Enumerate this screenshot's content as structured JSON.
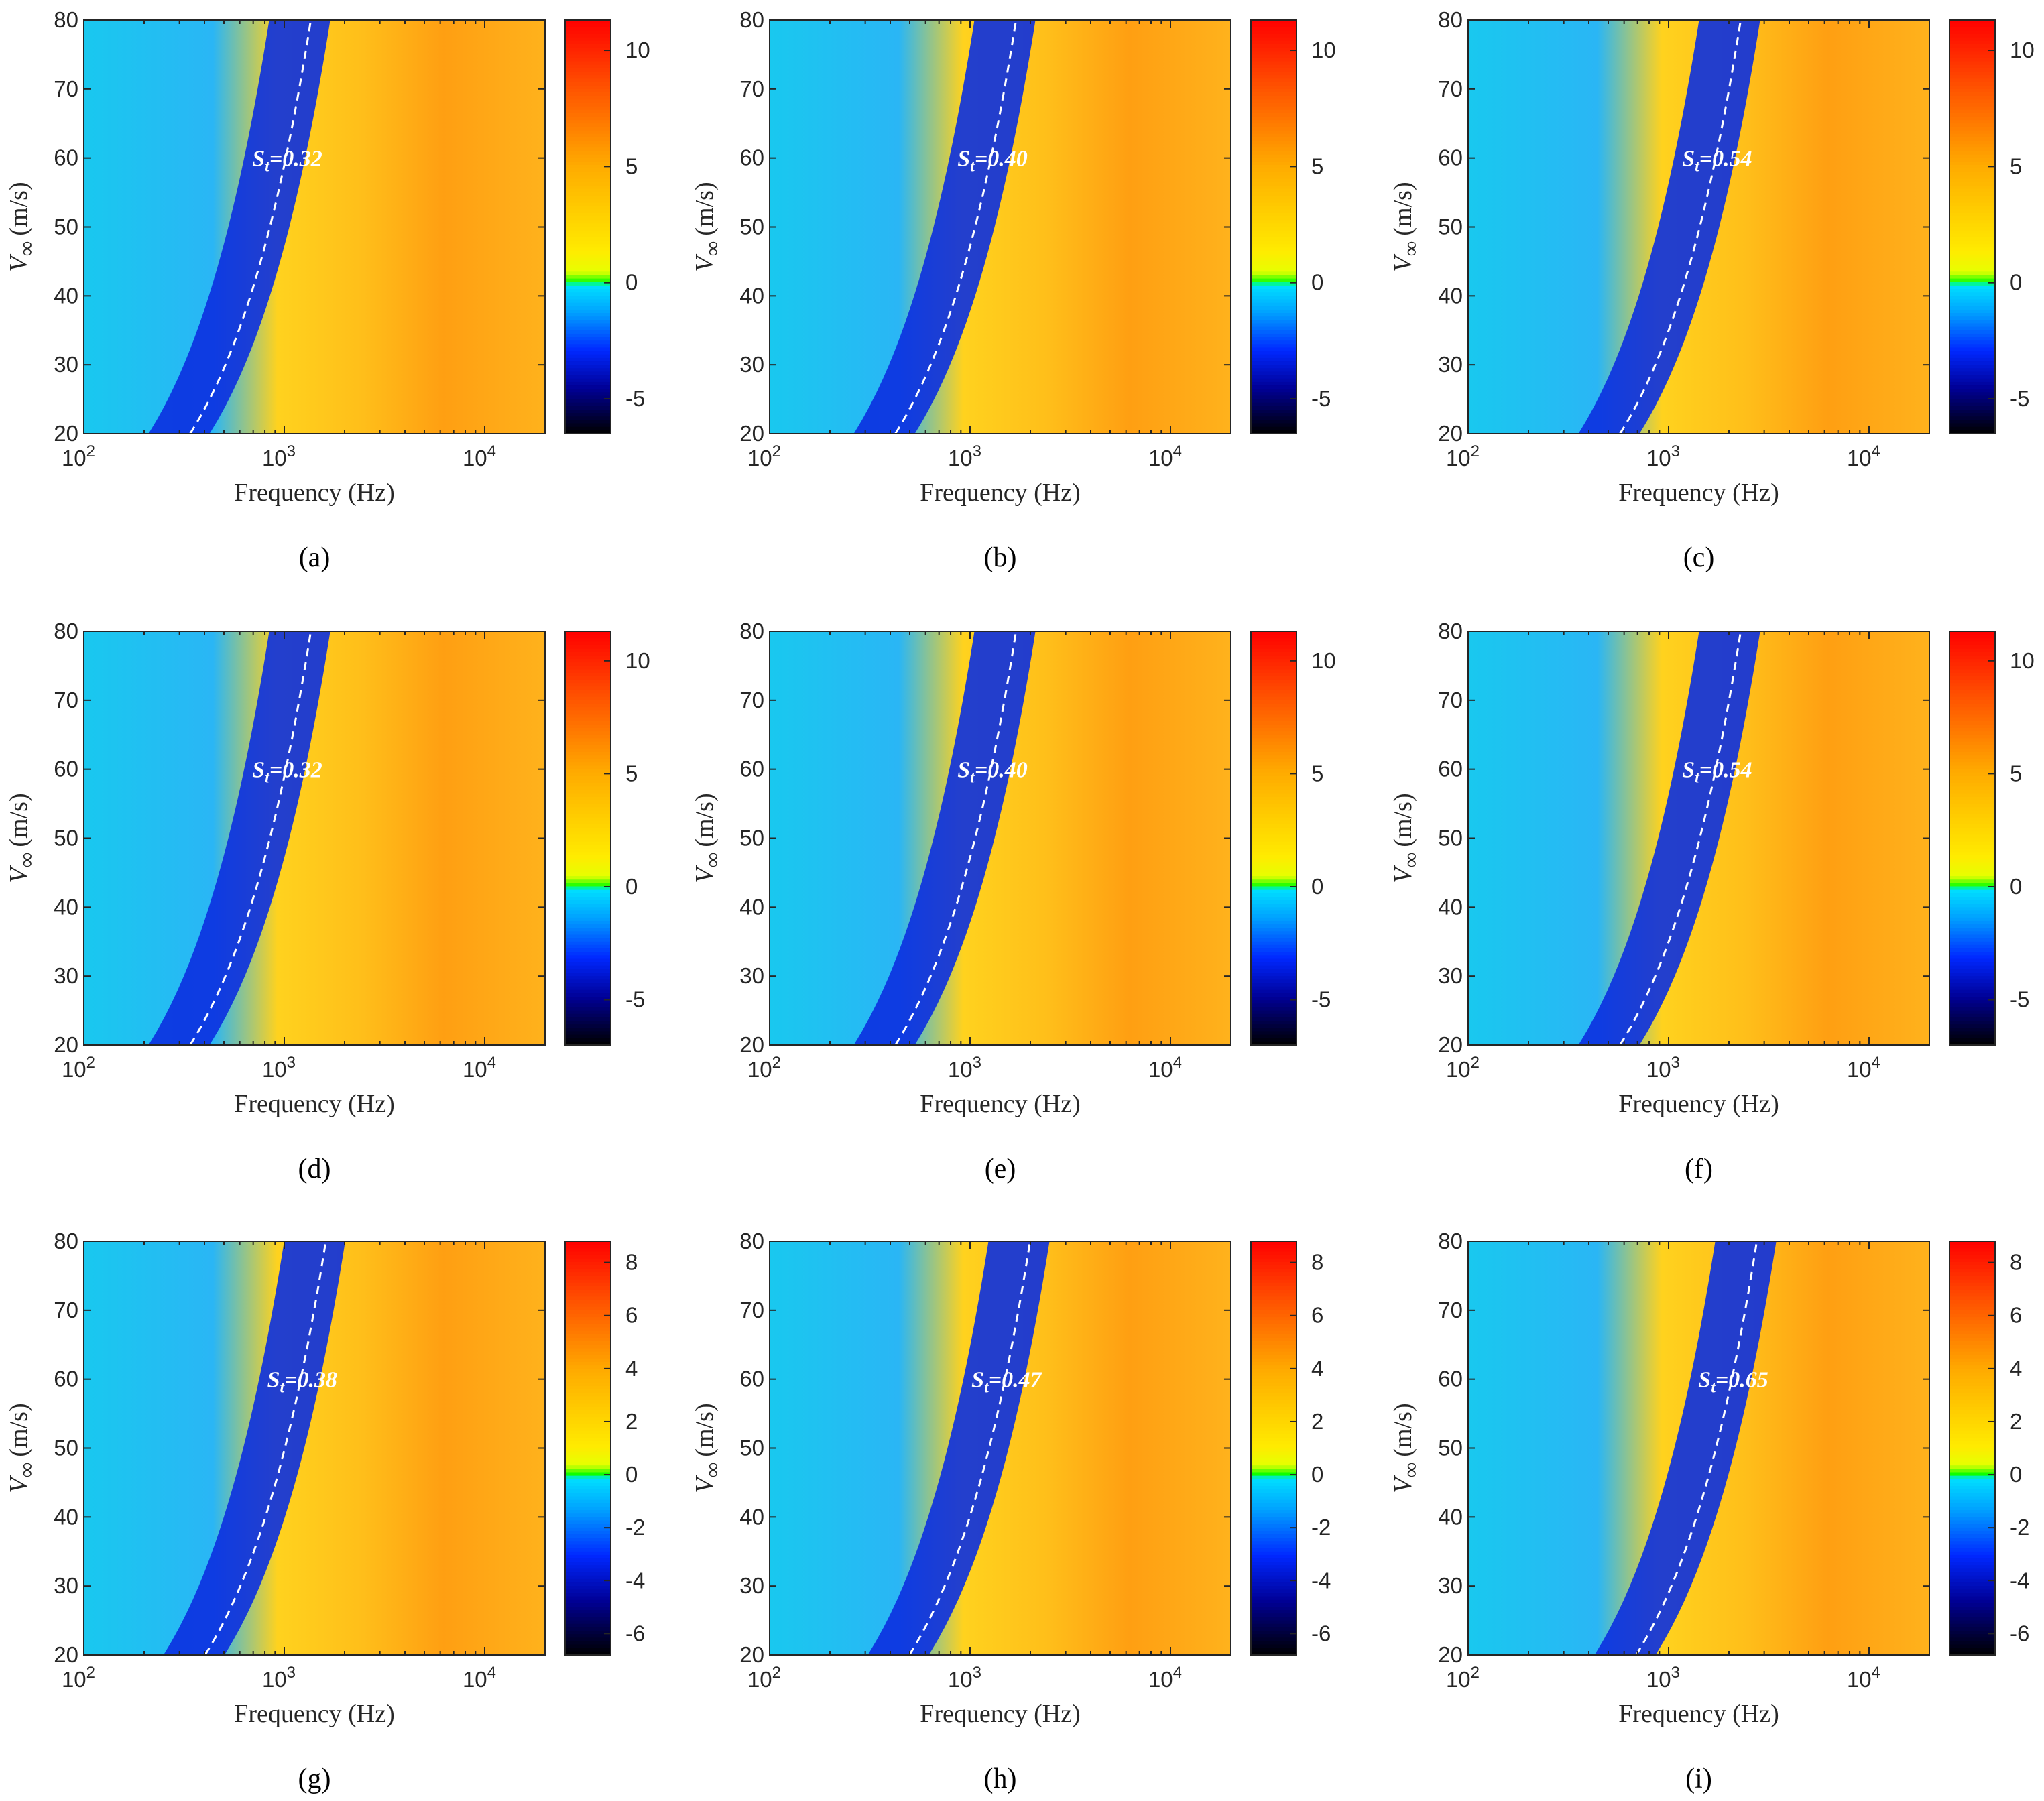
{
  "figure": {
    "panels": [
      "a",
      "b",
      "c",
      "d",
      "e",
      "f",
      "g",
      "h",
      "i"
    ]
  },
  "chart_data": [
    {
      "id": "a",
      "type": "heatmap",
      "panel_label": "(a)",
      "xlabel": "Frequency (Hz)",
      "ylabel_symbol": "V",
      "ylabel_subscript": "∞",
      "ylabel_unit": "(m/s)",
      "x_scale": "log",
      "xlim": [
        100,
        20000
      ],
      "x_ticks": [
        100,
        1000,
        10000
      ],
      "x_tick_labels": [
        "10",
        "10",
        "10"
      ],
      "x_tick_exponents": [
        "2",
        "3",
        "4"
      ],
      "ylim": [
        20,
        80
      ],
      "y_ticks": [
        20,
        30,
        40,
        50,
        60,
        70,
        80
      ],
      "y_tick_labels": [
        "20",
        "30",
        "40",
        "50",
        "60",
        "70",
        "80"
      ],
      "colorbar": {
        "min": -6.5,
        "max": 11.3,
        "ticks": [
          -5,
          0,
          5,
          10
        ],
        "tick_labels": [
          "-5",
          "0",
          "5",
          "10"
        ]
      },
      "strouhal_line": {
        "value": 0.32,
        "label_symbol": "S",
        "label_subscript": "t",
        "label_value": "=0.32"
      }
    },
    {
      "id": "b",
      "type": "heatmap",
      "panel_label": "(b)",
      "xlabel": "Frequency (Hz)",
      "ylabel_symbol": "V",
      "ylabel_subscript": "∞",
      "ylabel_unit": "(m/s)",
      "x_scale": "log",
      "xlim": [
        100,
        20000
      ],
      "x_ticks": [
        100,
        1000,
        10000
      ],
      "x_tick_labels": [
        "10",
        "10",
        "10"
      ],
      "x_tick_exponents": [
        "2",
        "3",
        "4"
      ],
      "ylim": [
        20,
        80
      ],
      "y_ticks": [
        20,
        30,
        40,
        50,
        60,
        70,
        80
      ],
      "y_tick_labels": [
        "20",
        "30",
        "40",
        "50",
        "60",
        "70",
        "80"
      ],
      "colorbar": {
        "min": -6.5,
        "max": 11.3,
        "ticks": [
          -5,
          0,
          5,
          10
        ],
        "tick_labels": [
          "-5",
          "0",
          "5",
          "10"
        ]
      },
      "strouhal_line": {
        "value": 0.4,
        "label_symbol": "S",
        "label_subscript": "t",
        "label_value": "=0.40"
      }
    },
    {
      "id": "c",
      "type": "heatmap",
      "panel_label": "(c)",
      "xlabel": "Frequency (Hz)",
      "ylabel_symbol": "V",
      "ylabel_subscript": "∞",
      "ylabel_unit": "(m/s)",
      "x_scale": "log",
      "xlim": [
        100,
        20000
      ],
      "x_ticks": [
        100,
        1000,
        10000
      ],
      "x_tick_labels": [
        "10",
        "10",
        "10"
      ],
      "x_tick_exponents": [
        "2",
        "3",
        "4"
      ],
      "ylim": [
        20,
        80
      ],
      "y_ticks": [
        20,
        30,
        40,
        50,
        60,
        70,
        80
      ],
      "y_tick_labels": [
        "20",
        "30",
        "40",
        "50",
        "60",
        "70",
        "80"
      ],
      "colorbar": {
        "min": -6.5,
        "max": 11.3,
        "ticks": [
          -5,
          0,
          5,
          10
        ],
        "tick_labels": [
          "-5",
          "0",
          "5",
          "10"
        ]
      },
      "strouhal_line": {
        "value": 0.54,
        "label_symbol": "S",
        "label_subscript": "t",
        "label_value": "=0.54"
      }
    },
    {
      "id": "d",
      "type": "heatmap",
      "panel_label": "(d)",
      "xlabel": "Frequency (Hz)",
      "ylabel_symbol": "V",
      "ylabel_subscript": "∞",
      "ylabel_unit": "(m/s)",
      "x_scale": "log",
      "xlim": [
        100,
        20000
      ],
      "x_ticks": [
        100,
        1000,
        10000
      ],
      "x_tick_labels": [
        "10",
        "10",
        "10"
      ],
      "x_tick_exponents": [
        "2",
        "3",
        "4"
      ],
      "ylim": [
        20,
        80
      ],
      "y_ticks": [
        20,
        30,
        40,
        50,
        60,
        70,
        80
      ],
      "y_tick_labels": [
        "20",
        "30",
        "40",
        "50",
        "60",
        "70",
        "80"
      ],
      "colorbar": {
        "min": -7,
        "max": 11.3,
        "ticks": [
          -5,
          0,
          5,
          10
        ],
        "tick_labels": [
          "-5",
          "0",
          "5",
          "10"
        ]
      },
      "strouhal_line": {
        "value": 0.32,
        "label_symbol": "S",
        "label_subscript": "t",
        "label_value": "=0.32"
      }
    },
    {
      "id": "e",
      "type": "heatmap",
      "panel_label": "(e)",
      "xlabel": "Frequency (Hz)",
      "ylabel_symbol": "V",
      "ylabel_subscript": "∞",
      "ylabel_unit": "(m/s)",
      "x_scale": "log",
      "xlim": [
        100,
        20000
      ],
      "x_ticks": [
        100,
        1000,
        10000
      ],
      "x_tick_labels": [
        "10",
        "10",
        "10"
      ],
      "x_tick_exponents": [
        "2",
        "3",
        "4"
      ],
      "ylim": [
        20,
        80
      ],
      "y_ticks": [
        20,
        30,
        40,
        50,
        60,
        70,
        80
      ],
      "y_tick_labels": [
        "20",
        "30",
        "40",
        "50",
        "60",
        "70",
        "80"
      ],
      "colorbar": {
        "min": -7,
        "max": 11.3,
        "ticks": [
          -5,
          0,
          5,
          10
        ],
        "tick_labels": [
          "-5",
          "0",
          "5",
          "10"
        ]
      },
      "strouhal_line": {
        "value": 0.4,
        "label_symbol": "S",
        "label_subscript": "t",
        "label_value": "=0.40"
      }
    },
    {
      "id": "f",
      "type": "heatmap",
      "panel_label": "(f)",
      "xlabel": "Frequency (Hz)",
      "ylabel_symbol": "V",
      "ylabel_subscript": "∞",
      "ylabel_unit": "(m/s)",
      "x_scale": "log",
      "xlim": [
        100,
        20000
      ],
      "x_ticks": [
        100,
        1000,
        10000
      ],
      "x_tick_labels": [
        "10",
        "10",
        "10"
      ],
      "x_tick_exponents": [
        "2",
        "3",
        "4"
      ],
      "ylim": [
        20,
        80
      ],
      "y_ticks": [
        20,
        30,
        40,
        50,
        60,
        70,
        80
      ],
      "y_tick_labels": [
        "20",
        "30",
        "40",
        "50",
        "60",
        "70",
        "80"
      ],
      "colorbar": {
        "min": -7,
        "max": 11.3,
        "ticks": [
          -5,
          0,
          5,
          10
        ],
        "tick_labels": [
          "-5",
          "0",
          "5",
          "10"
        ]
      },
      "strouhal_line": {
        "value": 0.54,
        "label_symbol": "S",
        "label_subscript": "t",
        "label_value": "=0.54"
      }
    },
    {
      "id": "g",
      "type": "heatmap",
      "panel_label": "(g)",
      "xlabel": "Frequency (Hz)",
      "ylabel_symbol": "V",
      "ylabel_subscript": "∞",
      "ylabel_unit": "(m/s)",
      "x_scale": "log",
      "xlim": [
        100,
        20000
      ],
      "x_ticks": [
        100,
        1000,
        10000
      ],
      "x_tick_labels": [
        "10",
        "10",
        "10"
      ],
      "x_tick_exponents": [
        "2",
        "3",
        "4"
      ],
      "ylim": [
        20,
        80
      ],
      "y_ticks": [
        20,
        30,
        40,
        50,
        60,
        70,
        80
      ],
      "y_tick_labels": [
        "20",
        "30",
        "40",
        "50",
        "60",
        "70",
        "80"
      ],
      "colorbar": {
        "min": -6.8,
        "max": 8.8,
        "ticks": [
          -6,
          -4,
          -2,
          0,
          2,
          4,
          6,
          8
        ],
        "tick_labels": [
          "-6",
          "-4",
          "-2",
          "0",
          "2",
          "4",
          "6",
          "8"
        ]
      },
      "strouhal_line": {
        "value": 0.38,
        "label_symbol": "S",
        "label_subscript": "t",
        "label_value": "=0.38"
      }
    },
    {
      "id": "h",
      "type": "heatmap",
      "panel_label": "(h)",
      "xlabel": "Frequency (Hz)",
      "ylabel_symbol": "V",
      "ylabel_subscript": "∞",
      "ylabel_unit": "(m/s)",
      "x_scale": "log",
      "xlim": [
        100,
        20000
      ],
      "x_ticks": [
        100,
        1000,
        10000
      ],
      "x_tick_labels": [
        "10",
        "10",
        "10"
      ],
      "x_tick_exponents": [
        "2",
        "3",
        "4"
      ],
      "ylim": [
        20,
        80
      ],
      "y_ticks": [
        20,
        30,
        40,
        50,
        60,
        70,
        80
      ],
      "y_tick_labels": [
        "20",
        "30",
        "40",
        "50",
        "60",
        "70",
        "80"
      ],
      "colorbar": {
        "min": -6.8,
        "max": 8.8,
        "ticks": [
          -6,
          -4,
          -2,
          0,
          2,
          4,
          6,
          8
        ],
        "tick_labels": [
          "-6",
          "-4",
          "-2",
          "0",
          "2",
          "4",
          "6",
          "8"
        ]
      },
      "strouhal_line": {
        "value": 0.47,
        "label_symbol": "S",
        "label_subscript": "t",
        "label_value": "=0.47"
      }
    },
    {
      "id": "i",
      "type": "heatmap",
      "panel_label": "(i)",
      "xlabel": "Frequency (Hz)",
      "ylabel_symbol": "V",
      "ylabel_subscript": "∞",
      "ylabel_unit": "(m/s)",
      "x_scale": "log",
      "xlim": [
        100,
        20000
      ],
      "x_ticks": [
        100,
        1000,
        10000
      ],
      "x_tick_labels": [
        "10",
        "10",
        "10"
      ],
      "x_tick_exponents": [
        "2",
        "3",
        "4"
      ],
      "ylim": [
        20,
        80
      ],
      "y_ticks": [
        20,
        30,
        40,
        50,
        60,
        70,
        80
      ],
      "y_tick_labels": [
        "20",
        "30",
        "40",
        "50",
        "60",
        "70",
        "80"
      ],
      "colorbar": {
        "min": -6.8,
        "max": 8.8,
        "ticks": [
          -6,
          -4,
          -2,
          0,
          2,
          4,
          6,
          8
        ],
        "tick_labels": [
          "-6",
          "-4",
          "-2",
          "0",
          "2",
          "4",
          "6",
          "8"
        ]
      },
      "strouhal_line": {
        "value": 0.65,
        "label_symbol": "S",
        "label_subscript": "t",
        "label_value": "=0.65"
      }
    }
  ]
}
